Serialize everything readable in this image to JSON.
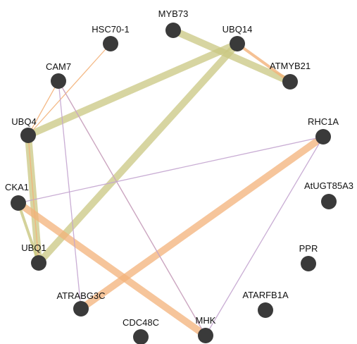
{
  "network": {
    "node_color": "#3a3a3a",
    "edge_colors": {
      "olive": "#c9c781",
      "orange": "#f3b179",
      "purple": "#c3a4cf"
    },
    "nodes": [
      {
        "id": "HSC70-1",
        "label": "HSC70-1"
      },
      {
        "id": "MYB73",
        "label": "MYB73"
      },
      {
        "id": "UBQ14",
        "label": "UBQ14"
      },
      {
        "id": "ATMYB21",
        "label": "ATMYB21"
      },
      {
        "id": "CAM7",
        "label": "CAM7"
      },
      {
        "id": "RHC1A",
        "label": "RHC1A"
      },
      {
        "id": "UBQ4",
        "label": "UBQ4"
      },
      {
        "id": "AtUGT85A3",
        "label": "AtUGT85A3"
      },
      {
        "id": "CKA1",
        "label": "CKA1"
      },
      {
        "id": "PPR",
        "label": "PPR"
      },
      {
        "id": "UBQ1",
        "label": "UBQ1"
      },
      {
        "id": "ATARFB1A",
        "label": "ATARFB1A"
      },
      {
        "id": "ATRABG3C",
        "label": "ATRABG3C"
      },
      {
        "id": "CDC48C",
        "label": "CDC48C"
      },
      {
        "id": "MHK",
        "label": "MHK"
      }
    ],
    "edges": [
      {
        "source": "MYB73",
        "target": "ATMYB21",
        "color": "olive",
        "weight": "thick"
      },
      {
        "source": "UBQ14",
        "target": "ATMYB21",
        "color": "orange",
        "weight": "medium"
      },
      {
        "source": "UBQ14",
        "target": "UBQ4",
        "color": "olive",
        "weight": "thick"
      },
      {
        "source": "UBQ14",
        "target": "UBQ1",
        "color": "olive",
        "weight": "thick"
      },
      {
        "source": "UBQ4",
        "target": "UBQ1",
        "color": "olive",
        "weight": "thick"
      },
      {
        "source": "CKA1",
        "target": "UBQ1",
        "color": "olive",
        "weight": "medium"
      },
      {
        "source": "RHC1A",
        "target": "ATRABG3C",
        "color": "orange",
        "weight": "thick"
      },
      {
        "source": "CKA1",
        "target": "MHK",
        "color": "orange",
        "weight": "thick"
      },
      {
        "source": "HSC70-1",
        "target": "UBQ4",
        "color": "orange",
        "weight": "thin"
      },
      {
        "source": "CAM7",
        "target": "UBQ4",
        "color": "orange",
        "weight": "thin"
      },
      {
        "source": "CAM7",
        "target": "MHK",
        "color": "orange",
        "weight": "thin"
      },
      {
        "source": "CAM7",
        "target": "MHK",
        "color": "purple",
        "weight": "thin"
      },
      {
        "source": "CAM7",
        "target": "ATRABG3C",
        "color": "purple",
        "weight": "thin"
      },
      {
        "source": "CKA1",
        "target": "RHC1A",
        "color": "purple",
        "weight": "thin"
      },
      {
        "source": "RHC1A",
        "target": "MHK",
        "color": "purple",
        "weight": "thin"
      },
      {
        "source": "UBQ4",
        "target": "UBQ1",
        "color": "orange",
        "weight": "thin"
      }
    ]
  }
}
